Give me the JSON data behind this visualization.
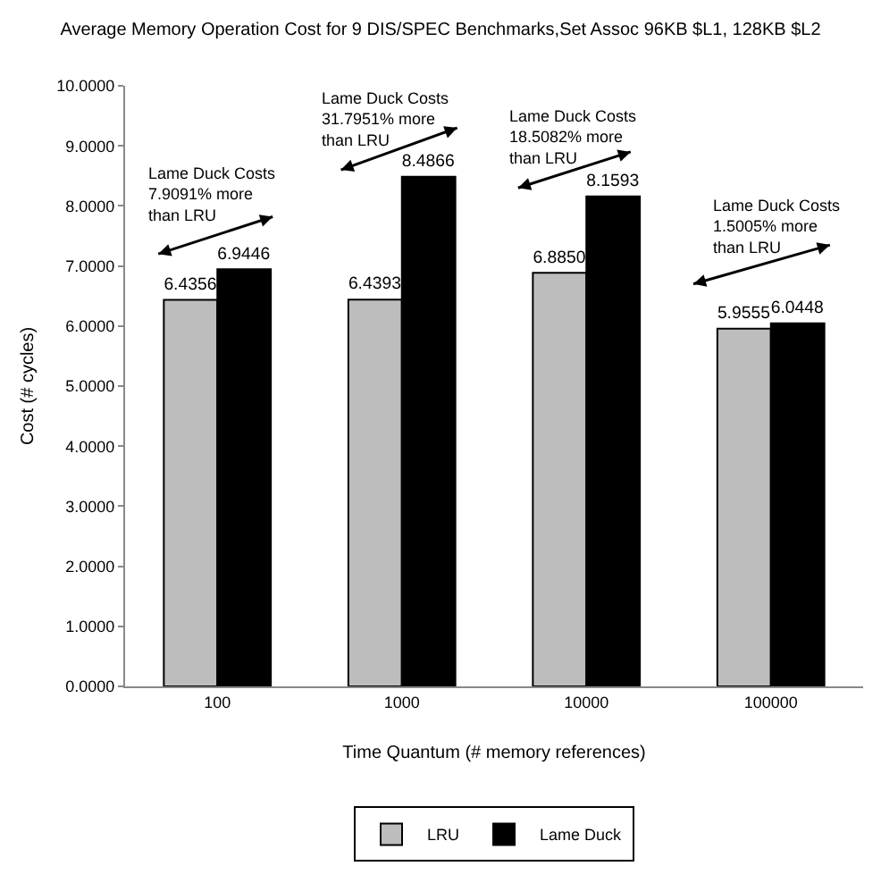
{
  "chart_data": {
    "type": "bar",
    "title": "Average Memory Operation Cost for 9 DIS/SPEC Benchmarks,Set Assoc 96KB $L1, 128KB $L2",
    "xlabel": "Time Quantum (# memory references)",
    "ylabel": "Cost (# cycles)",
    "categories": [
      "100",
      "1000",
      "10000",
      "100000"
    ],
    "series": [
      {
        "name": "LRU",
        "color": "#bdbdbd",
        "values": [
          6.4356,
          6.4393,
          6.885,
          5.9555
        ],
        "value_labels": [
          "6.4356",
          "6.4393",
          "6.8850",
          "5.9555"
        ]
      },
      {
        "name": "Lame Duck",
        "color": "#000000",
        "values": [
          6.9446,
          8.4866,
          8.1593,
          6.0448
        ],
        "value_labels": [
          "6.9446",
          "8.4866",
          "8.1593",
          "6.0448"
        ]
      }
    ],
    "ylim": [
      0,
      10
    ],
    "yticks": [
      {
        "value": 0,
        "label": "0.0000"
      },
      {
        "value": 1,
        "label": "1.0000"
      },
      {
        "value": 2,
        "label": "2.0000"
      },
      {
        "value": 3,
        "label": "3.0000"
      },
      {
        "value": 4,
        "label": "4.0000"
      },
      {
        "value": 5,
        "label": "5.0000"
      },
      {
        "value": 6,
        "label": "6.0000"
      },
      {
        "value": 7,
        "label": "7.0000"
      },
      {
        "value": 8,
        "label": "8.0000"
      },
      {
        "value": 9,
        "label": "9.0000"
      },
      {
        "value": 10,
        "label": "10.0000"
      }
    ],
    "annotations": [
      "Lame Duck Costs\n7.9091% more\nthan LRU",
      "Lame Duck Costs\n31.7951% more\nthan LRU",
      "Lame Duck Costs\n18.5082% more\nthan LRU",
      "Lame Duck Costs\n1.5005% more\nthan LRU"
    ],
    "grid": false,
    "legend": "bottom"
  }
}
